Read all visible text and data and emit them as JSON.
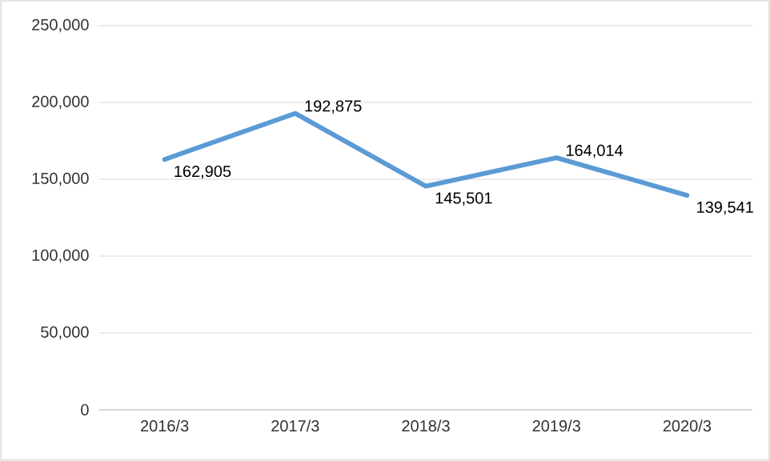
{
  "chart_data": {
    "type": "line",
    "categories": [
      "2016/3",
      "2017/3",
      "2018/3",
      "2019/3",
      "2020/3"
    ],
    "series": [
      {
        "color": "#5b9bd5",
        "values": [
          162905,
          192875,
          145501,
          164014,
          139541
        ],
        "value_labels": [
          "162,905",
          "192,875",
          "145,501",
          "164,014",
          "139,541"
        ]
      }
    ],
    "ylim": [
      0,
      250000
    ],
    "yticks": [
      {
        "value": 0,
        "label": "0"
      },
      {
        "value": 50000,
        "label": "50,000"
      },
      {
        "value": 100000,
        "label": "100,000"
      },
      {
        "value": 150000,
        "label": "150,000"
      },
      {
        "value": 200000,
        "label": "200,000"
      },
      {
        "value": 250000,
        "label": "250,000"
      }
    ],
    "grid": "y",
    "legend": false,
    "marker": "none",
    "line_style": "solid"
  }
}
